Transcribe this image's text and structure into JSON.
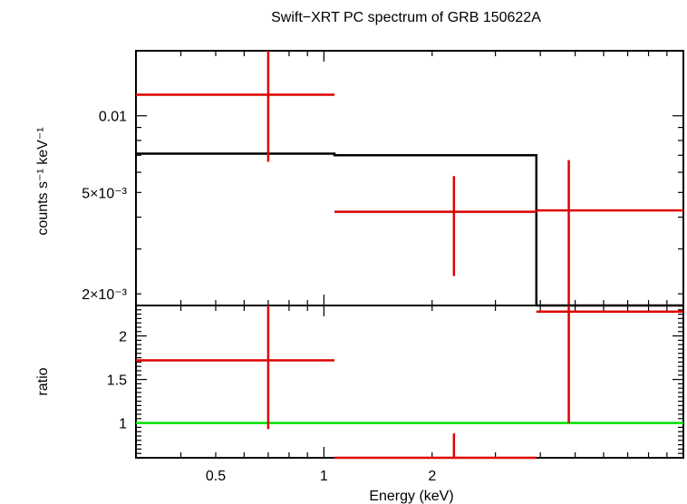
{
  "chart_data": {
    "type": "scatter",
    "title": "Swift−XRT PC spectrum of GRB 150622A",
    "xlabel": "Energy (keV)",
    "x_scale": "log",
    "xlim": [
      0.3,
      10
    ],
    "x_ticks": [
      {
        "value": 0.5,
        "label": "0.5"
      },
      {
        "value": 1,
        "label": "1"
      },
      {
        "value": 2,
        "label": "2"
      }
    ],
    "colors": {
      "data": "#e00000",
      "model": "#000000",
      "unity": "#00e000"
    },
    "panels": [
      {
        "name": "spectrum",
        "ylabel": "counts s⁻¹ keV⁻¹",
        "y_scale": "log",
        "ylim": [
          0.0018,
          0.018
        ],
        "y_ticks": [
          {
            "value": 0.01,
            "label": "0.01"
          },
          {
            "value": 0.005,
            "label": "5×10⁻³"
          },
          {
            "value": 0.002,
            "label": "2×10⁻³"
          }
        ],
        "data": [
          {
            "x": 0.7,
            "x_lo": 0.3,
            "x_hi": 1.07,
            "y": 0.0121,
            "y_lo": 0.0066,
            "y_hi": 0.018
          },
          {
            "x": 2.3,
            "x_lo": 1.07,
            "x_hi": 3.9,
            "y": 0.0042,
            "y_lo": 0.00235,
            "y_hi": 0.0058
          },
          {
            "x": 4.8,
            "x_lo": 3.9,
            "x_hi": 10,
            "y": 0.00425,
            "y_lo": 0.0018,
            "y_hi": 0.0067
          }
        ],
        "model": [
          {
            "x_lo": 0.3,
            "x_hi": 1.07,
            "y": 0.0071
          },
          {
            "x_lo": 1.07,
            "x_hi": 3.9,
            "y": 0.007
          },
          {
            "x_lo": 3.9,
            "x_hi": 10,
            "y": 0.0018
          }
        ]
      },
      {
        "name": "ratio",
        "ylabel": "ratio",
        "y_scale": "linear",
        "ylim": [
          0.6,
          2.35
        ],
        "y_ticks": [
          {
            "value": 1,
            "label": "1"
          },
          {
            "value": 1.5,
            "label": "1.5"
          },
          {
            "value": 2,
            "label": "2"
          }
        ],
        "unity": 1,
        "data": [
          {
            "x": 0.7,
            "x_lo": 0.3,
            "x_hi": 1.07,
            "y": 1.72,
            "y_lo": 0.93,
            "y_hi": 2.35
          },
          {
            "x": 2.3,
            "x_lo": 1.07,
            "x_hi": 3.9,
            "y": 0.6,
            "y_lo": 0.6,
            "y_hi": 0.88
          },
          {
            "x": 4.8,
            "x_lo": 3.9,
            "x_hi": 10,
            "y": 2.28,
            "y_lo": 1.0,
            "y_hi": 2.35
          }
        ]
      }
    ]
  }
}
